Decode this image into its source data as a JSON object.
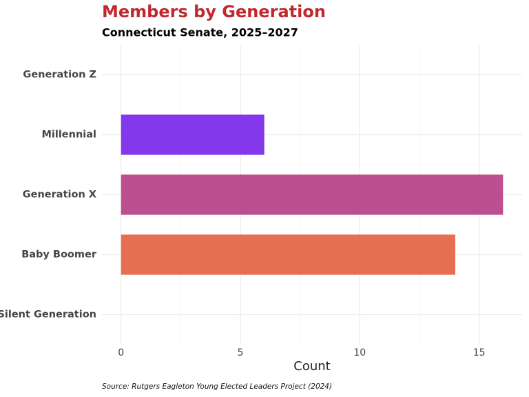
{
  "chart_data": {
    "type": "hbar",
    "title": "Members by Generation",
    "subtitle": "Connecticut Senate, 2025–2027",
    "categories": [
      "Generation Z",
      "Millennial",
      "Generation X",
      "Baby Boomer",
      "Silent Generation"
    ],
    "values": [
      0,
      6,
      16,
      14,
      0
    ],
    "colors": [
      null,
      "#8338ec",
      "#bc4f8f",
      "#e76f51",
      null
    ],
    "x_label": "Count",
    "xlim": [
      -0.8,
      16.8
    ],
    "xticks": [
      0,
      5,
      10,
      15
    ],
    "grid": true,
    "source": "Source: Rutgers Eagleton Young Elected Leaders Project (2024)"
  }
}
